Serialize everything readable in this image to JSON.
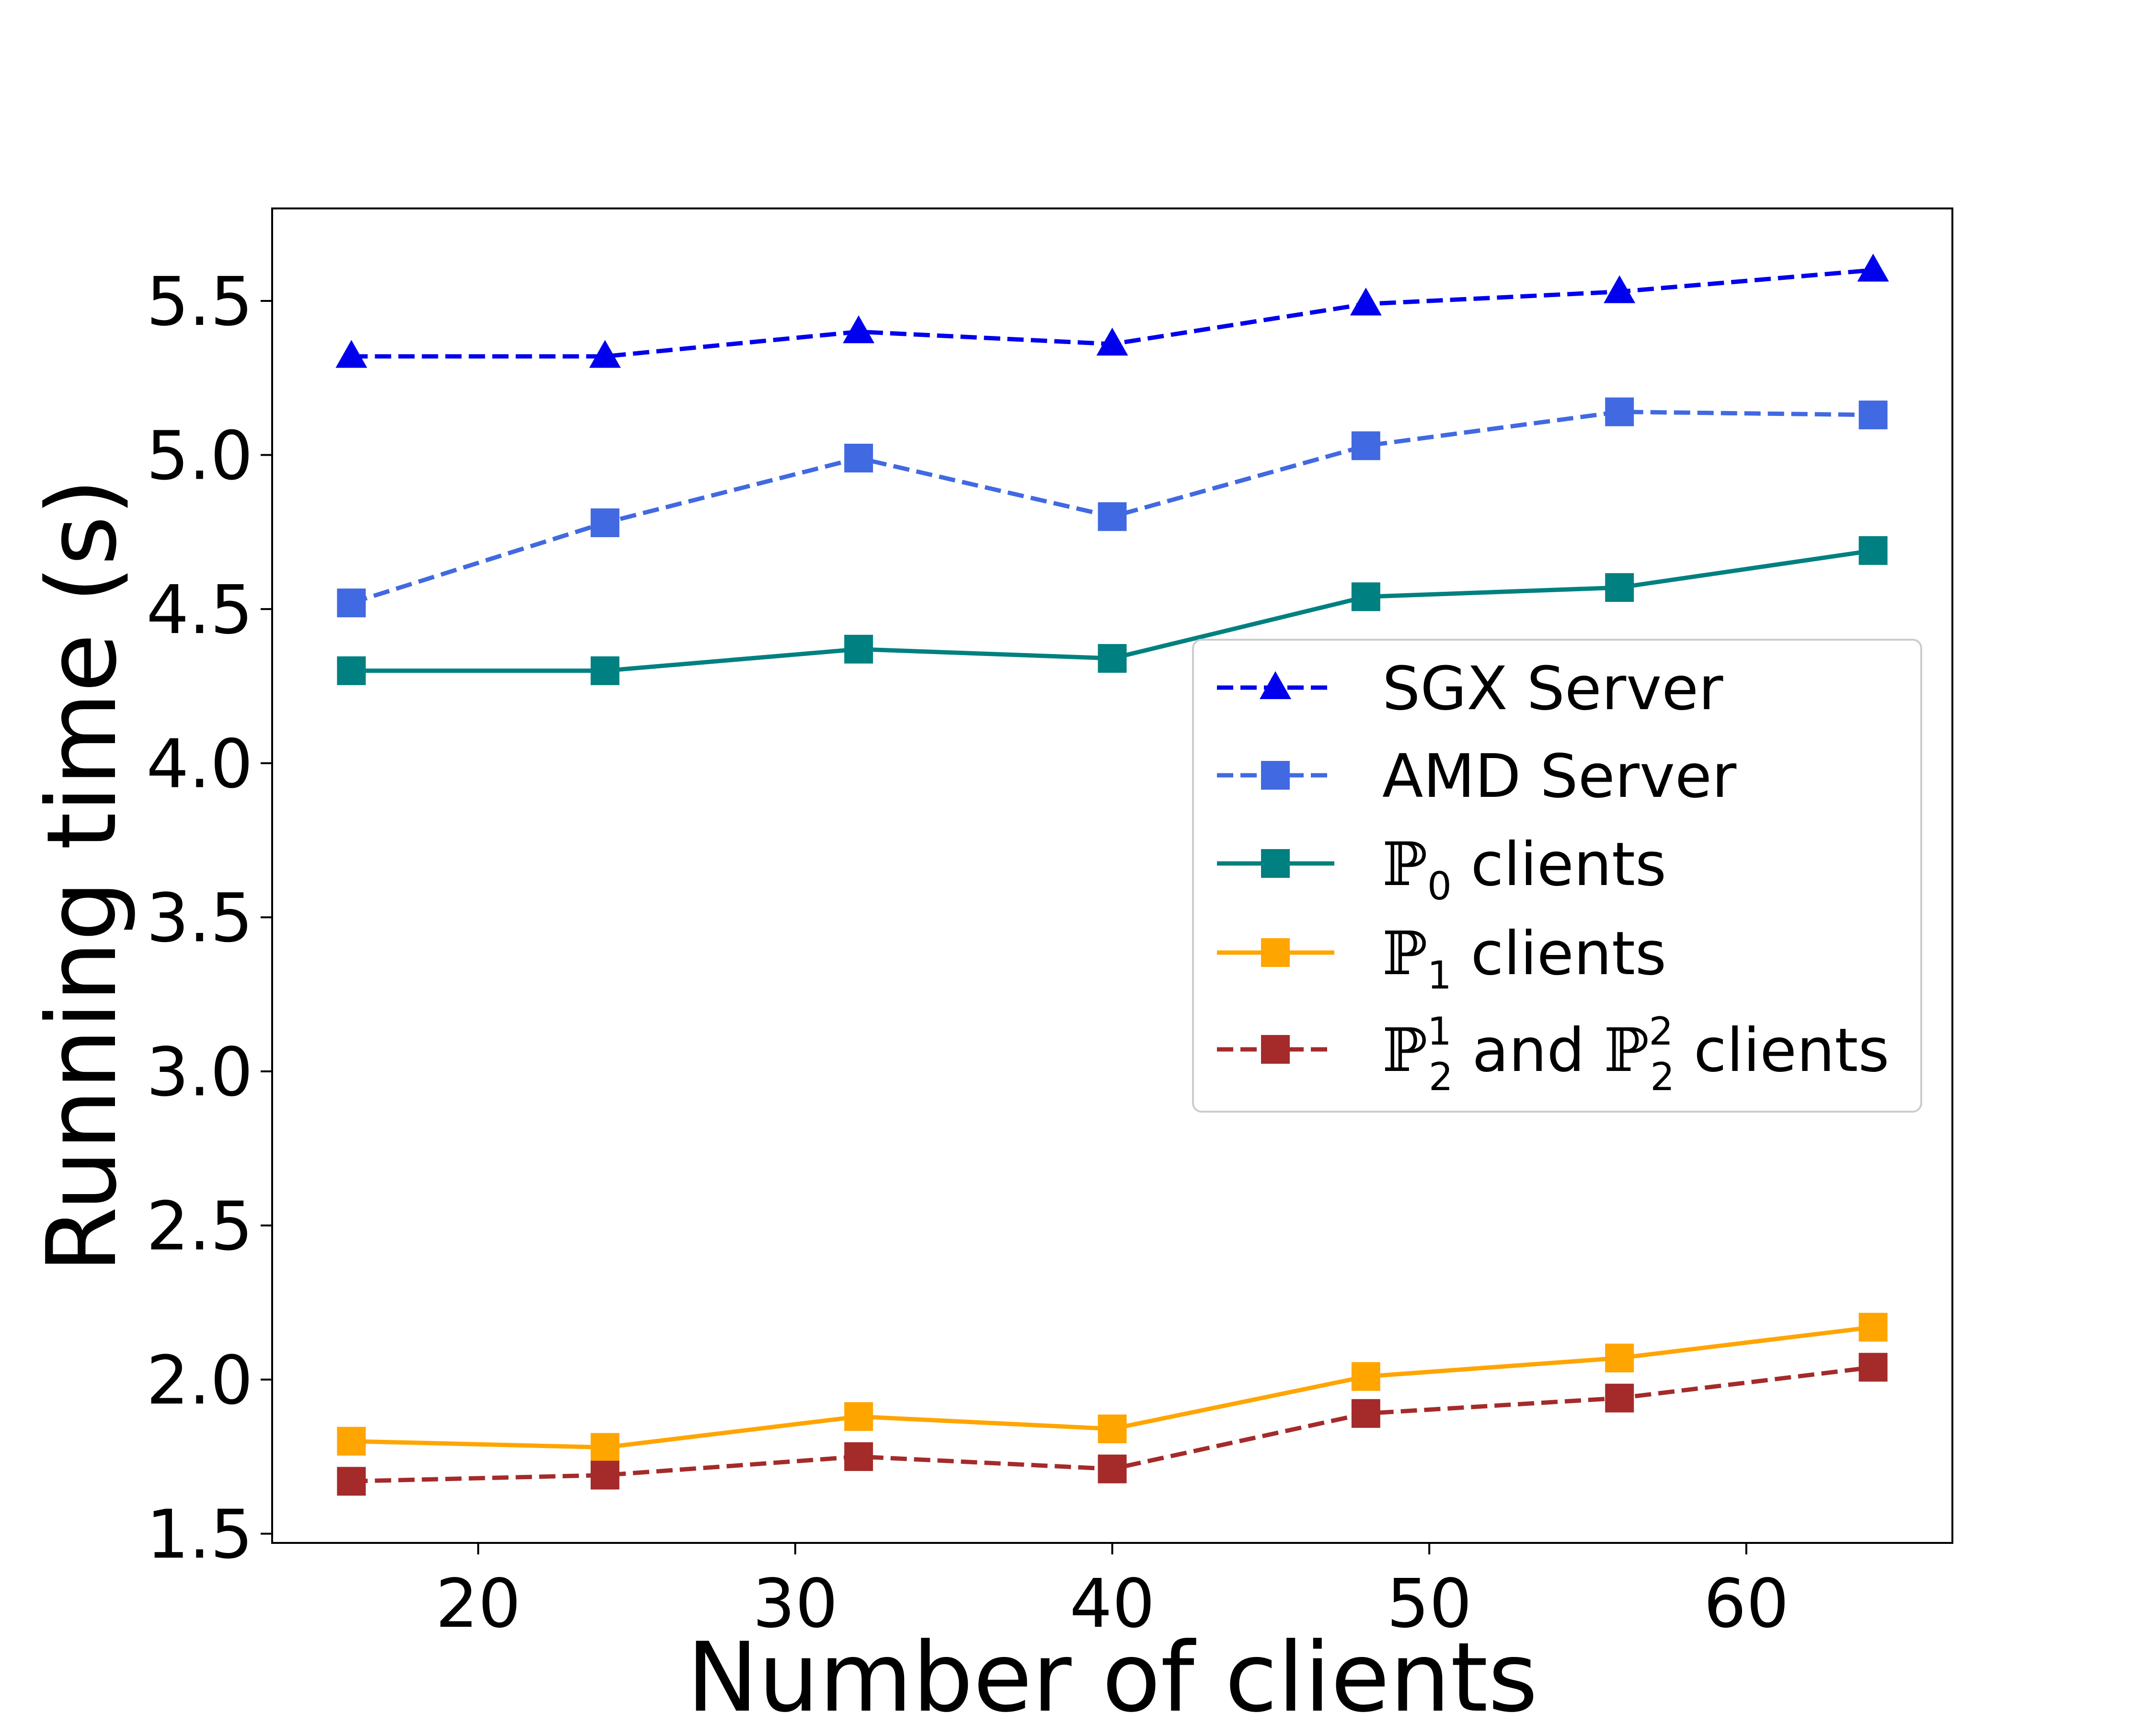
{
  "chart_data": {
    "type": "line",
    "title": "",
    "xlabel": "Number of clients",
    "ylabel": "Running time (s)",
    "xlim": [
      13.5,
      66.5
    ],
    "ylim": [
      1.47,
      5.8
    ],
    "xticks": [
      20,
      30,
      40,
      50,
      60
    ],
    "xtick_labels": [
      "20",
      "30",
      "40",
      "50",
      "60"
    ],
    "yticks": [
      1.5,
      2.0,
      2.5,
      3.0,
      3.5,
      4.0,
      4.5,
      5.0,
      5.5
    ],
    "ytick_labels": [
      "1.5",
      "2.0",
      "2.5",
      "3.0",
      "3.5",
      "4.0",
      "4.5",
      "5.0",
      "5.5"
    ],
    "x": [
      16,
      24,
      32,
      40,
      48,
      56,
      64
    ],
    "grid": false,
    "legend_position": "center-right",
    "series": [
      {
        "name": "SGX Server",
        "legend": {
          "main": "SGX Server"
        },
        "values": [
          5.32,
          5.32,
          5.4,
          5.36,
          5.49,
          5.53,
          5.6
        ],
        "color": "#0000ee",
        "dash": "dashed",
        "marker": "triangle"
      },
      {
        "name": "AMD Server",
        "legend": {
          "main": "AMD Server"
        },
        "values": [
          4.52,
          4.78,
          4.99,
          4.8,
          5.03,
          5.14,
          5.13
        ],
        "color": "#4169e1",
        "dash": "dashed",
        "marker": "square"
      },
      {
        "name": "ℙ0 clients",
        "legend": {
          "sym": "ℙ",
          "sub": "0",
          "main": " clients"
        },
        "values": [
          4.3,
          4.3,
          4.37,
          4.34,
          4.54,
          4.57,
          4.69
        ],
        "color": "#008080",
        "dash": "solid",
        "marker": "square"
      },
      {
        "name": "ℙ1 clients",
        "legend": {
          "sym": "ℙ",
          "sub": "1",
          "main": " clients"
        },
        "values": [
          1.8,
          1.78,
          1.88,
          1.84,
          2.01,
          2.07,
          2.17
        ],
        "color": "#ffa500",
        "dash": "solid",
        "marker": "square"
      },
      {
        "name": "ℙ2^1 and ℙ2^2 clients",
        "legend": {
          "sym": "ℙ",
          "sub": "2",
          "sup": "1",
          "mid": " and ",
          "sym2": "ℙ",
          "sub2": "2",
          "sup2": "2",
          "main": " clients"
        },
        "values": [
          1.67,
          1.69,
          1.75,
          1.71,
          1.89,
          1.94,
          2.04
        ],
        "color": "#a52a2a",
        "dash": "dashed",
        "marker": "square"
      }
    ]
  }
}
